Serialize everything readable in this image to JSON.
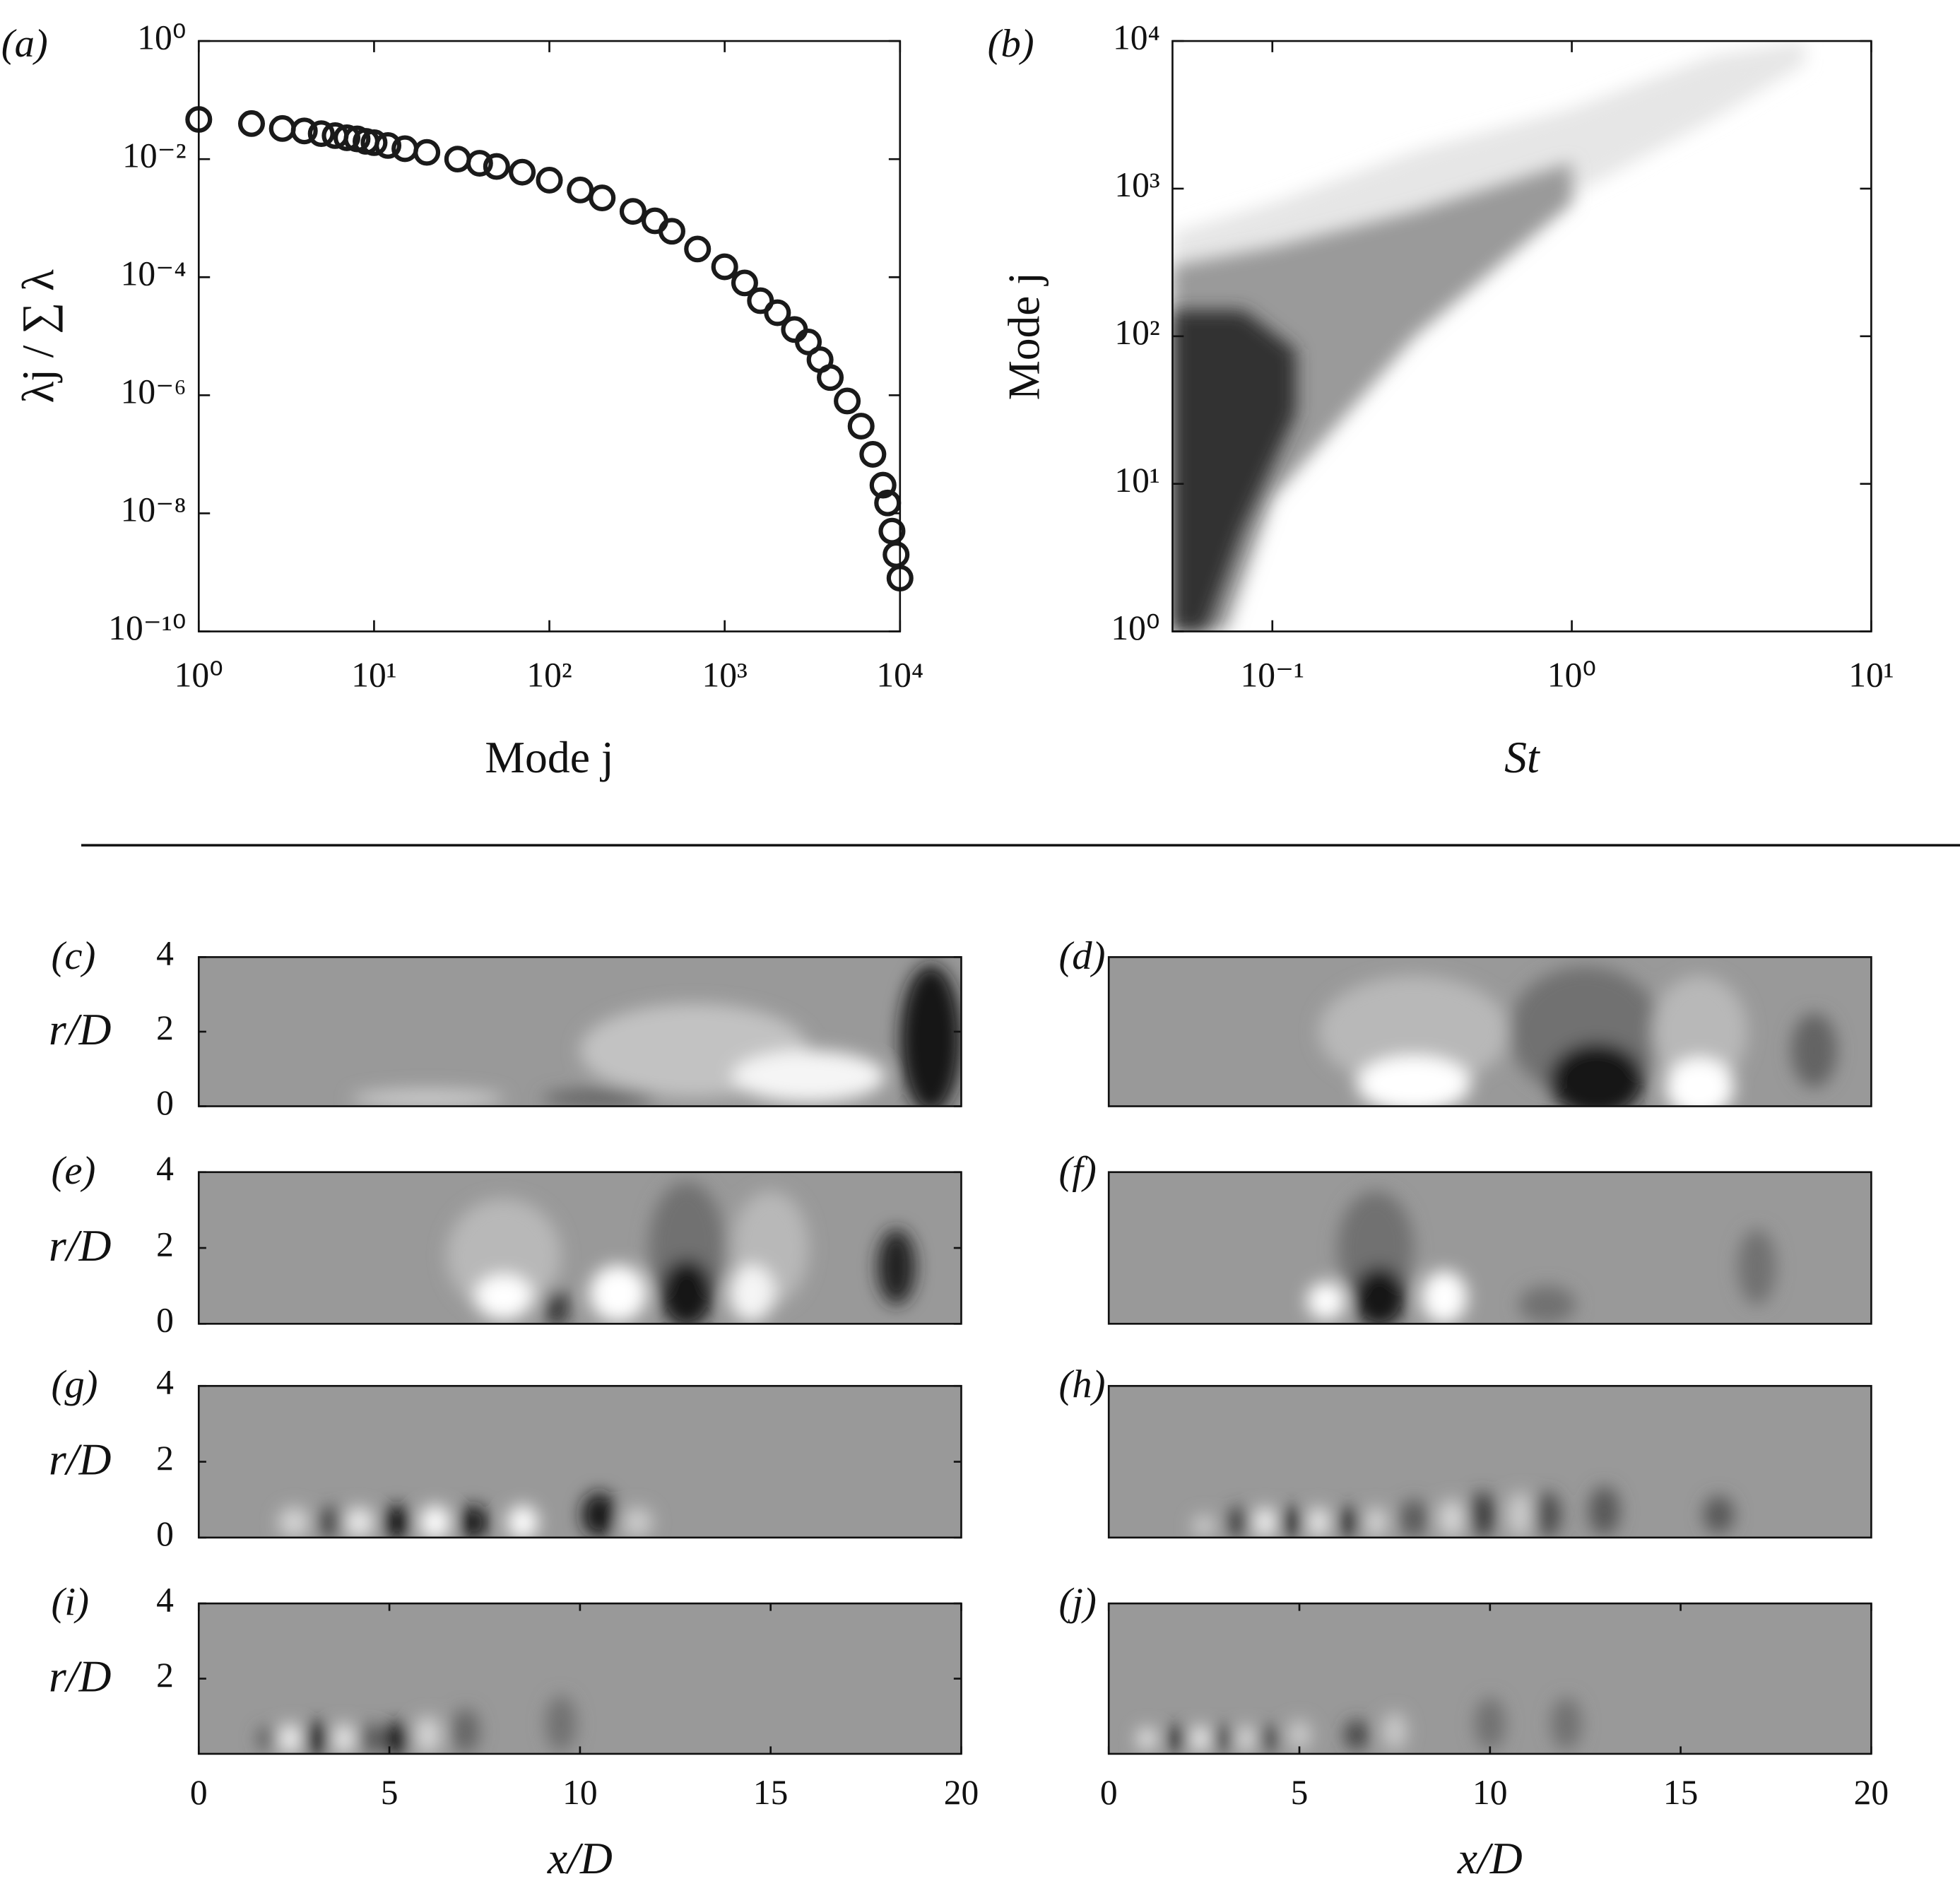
{
  "chart_data": [
    {
      "type": "scatter",
      "label": "(a)",
      "xlabel": "Mode j",
      "ylabel": "λj / ∑ λ",
      "xscale": "log",
      "yscale": "log",
      "color": "#1a1a1a",
      "x": [
        1,
        2,
        3,
        4,
        5,
        6,
        7,
        8,
        9,
        10,
        12,
        15,
        20,
        30,
        40,
        50,
        70,
        100,
        150,
        200,
        300,
        400,
        500,
        700,
        1000,
        1300,
        1600,
        2000,
        2500,
        3000,
        3500,
        4000,
        5000,
        6000,
        7000,
        8000,
        8500,
        9000,
        9500,
        10000
      ],
      "values": [
        0.047,
        0.04,
        0.033,
        0.03,
        0.027,
        0.025,
        0.023,
        0.022,
        0.02,
        0.019,
        0.017,
        0.015,
        0.013,
        0.01,
        0.0085,
        0.0075,
        0.006,
        0.0044,
        0.003,
        0.0022,
        0.0013,
        0.0009,
        0.0006,
        0.0003,
        0.00015,
        8e-05,
        4e-05,
        2.5e-05,
        1.3e-05,
        8e-06,
        4e-06,
        2e-06,
        8e-07,
        3e-07,
        1e-07,
        3e-08,
        1.5e-08,
        5e-09,
        2e-09,
        8e-10
      ],
      "xlim": [
        1,
        10000
      ],
      "ylim": [
        1e-10,
        1
      ],
      "xticks": [
        {
          "value": 1,
          "label": "10⁰"
        },
        {
          "value": 10,
          "label": "10¹"
        },
        {
          "value": 100,
          "label": "10²"
        },
        {
          "value": 1000,
          "label": "10³"
        },
        {
          "value": 10000,
          "label": "10⁴"
        }
      ],
      "yticks": [
        {
          "value": 1e-10,
          "label": "10⁻¹⁰"
        },
        {
          "value": 1e-08,
          "label": "10⁻⁸"
        },
        {
          "value": 1e-06,
          "label": "10⁻⁶"
        },
        {
          "value": 0.0001,
          "label": "10⁻⁴"
        },
        {
          "value": 0.01,
          "label": "10⁻²"
        },
        {
          "value": 1,
          "label": "10⁰"
        }
      ]
    },
    {
      "type": "region",
      "label": "(b)",
      "xlabel": "St",
      "ylabel": "Mode j",
      "xscale": "log",
      "yscale": "log",
      "regions": [
        {
          "color": "#e6e6e6",
          "x": [
            0.0464,
            0.0464,
            0.1,
            0.3,
            1,
            3,
            6,
            6,
            3,
            1,
            0.3,
            0.1,
            0.06
          ],
          "y": [
            1,
            500,
            800,
            1800,
            3500,
            8000,
            10000,
            7000,
            3000,
            900,
            200,
            10,
            1
          ]
        },
        {
          "color": "#9a9a9a",
          "x": [
            0.0464,
            0.0464,
            0.1,
            0.3,
            1,
            1,
            0.3,
            0.1,
            0.07
          ],
          "y": [
            1,
            300,
            400,
            700,
            1500,
            800,
            100,
            8,
            1
          ]
        },
        {
          "color": "#333333",
          "x": [
            0.0464,
            0.0464,
            0.08,
            0.12,
            0.12,
            0.08,
            0.06
          ],
          "y": [
            1,
            150,
            150,
            80,
            30,
            5,
            1
          ]
        }
      ],
      "xlim": [
        0.0464,
        10
      ],
      "ylim": [
        1,
        10000
      ],
      "xticks": [
        {
          "value": 0.1,
          "label": "10⁻¹"
        },
        {
          "value": 1,
          "label": "10⁰"
        },
        {
          "value": 10,
          "label": "10¹"
        }
      ],
      "yticks": [
        {
          "value": 1,
          "label": "10⁰"
        },
        {
          "value": 10,
          "label": "10¹"
        },
        {
          "value": 100,
          "label": "10²"
        },
        {
          "value": 1000,
          "label": "10³"
        },
        {
          "value": 10000,
          "label": "10⁴"
        }
      ]
    },
    {
      "type": "contour",
      "label": "(c)",
      "ylabel": "r/D",
      "xlim": [
        0,
        20
      ],
      "ylim": [
        0,
        4
      ],
      "yticks": [
        0,
        2,
        4
      ],
      "x": [
        13,
        19.2,
        16,
        10.5,
        6
      ],
      "r": [
        1.5,
        1.8,
        0.8,
        0.2,
        0.2
      ],
      "values": [
        -0.4,
        1,
        -0.9,
        0.4,
        -0.5
      ],
      "widths": [
        6,
        1.6,
        4,
        3,
        4
      ],
      "heights": [
        2.5,
        4,
        1.4,
        0.5,
        0.5
      ]
    },
    {
      "type": "contour",
      "label": "(d)",
      "xlim": [
        0,
        20
      ],
      "ylim": [
        0,
        4
      ],
      "x": [
        8,
        12.5,
        15.5,
        8,
        12.8,
        15.5,
        18.5
      ],
      "r": [
        2,
        2,
        2,
        0.6,
        0.7,
        0.5,
        1.5
      ],
      "values": [
        -0.3,
        0.3,
        -0.3,
        -1,
        1,
        -1,
        0.4
      ],
      "widths": [
        5,
        4,
        2.5,
        3,
        2.5,
        1.8,
        1.2
      ],
      "heights": [
        3,
        3.5,
        3,
        1.5,
        2,
        1.6,
        2
      ]
    },
    {
      "type": "contour",
      "label": "(e)",
      "ylabel": "r/D",
      "xlim": [
        0,
        20
      ],
      "ylim": [
        0,
        4
      ],
      "yticks": [
        0,
        2,
        4
      ],
      "x": [
        8,
        12.8,
        15,
        8,
        9.4,
        11,
        12.8,
        14.5,
        18.3
      ],
      "r": [
        1.8,
        2,
        2,
        0.7,
        0.4,
        0.8,
        0.8,
        0.8,
        1.5
      ],
      "values": [
        -0.3,
        0.3,
        -0.3,
        -1,
        0.8,
        -1,
        1,
        -0.9,
        0.9
      ],
      "widths": [
        3,
        2,
        2,
        1.5,
        0.6,
        1.5,
        1.4,
        1.2,
        1
      ],
      "heights": [
        3,
        3.5,
        3,
        1.2,
        1,
        1.5,
        1.8,
        1.5,
        2
      ]
    },
    {
      "type": "contour",
      "label": "(f)",
      "xlim": [
        0,
        20
      ],
      "ylim": [
        0,
        4
      ],
      "x": [
        7,
        5.7,
        7.1,
        8.8,
        11.5,
        17
      ],
      "r": [
        2,
        0.6,
        0.7,
        0.7,
        0.5,
        1.5
      ],
      "values": [
        0.3,
        -1,
        1,
        -1,
        0.3,
        0.3
      ],
      "widths": [
        2,
        1,
        1.4,
        1.2,
        1.5,
        1
      ],
      "heights": [
        3,
        1,
        1.6,
        1.4,
        1,
        2
      ]
    },
    {
      "type": "contour",
      "label": "(g)",
      "ylabel": "r/D",
      "xlim": [
        0,
        20
      ],
      "ylim": [
        0,
        4
      ],
      "yticks": [
        0,
        2,
        4
      ],
      "x": [
        2.5,
        3.5,
        4.2,
        5.2,
        6.2,
        7.2,
        8.5,
        10.5,
        11.5
      ],
      "r": [
        0.4,
        0.4,
        0.4,
        0.4,
        0.4,
        0.4,
        0.4,
        0.6,
        0.4
      ],
      "values": [
        -0.6,
        0.6,
        -0.8,
        1,
        -1,
        1,
        -1,
        1,
        -0.5
      ],
      "widths": [
        0.8,
        0.8,
        0.8,
        0.8,
        0.8,
        0.8,
        0.8,
        0.9,
        0.8
      ],
      "heights": [
        0.8,
        0.8,
        0.8,
        0.9,
        0.9,
        0.9,
        0.9,
        1.2,
        0.8
      ]
    },
    {
      "type": "contour",
      "label": "(h)",
      "xlim": [
        0,
        20
      ],
      "ylim": [
        0,
        4
      ],
      "x": [
        2.5,
        3.4,
        4.1,
        4.8,
        5.5,
        6.3,
        7,
        8,
        9,
        9.8,
        10.8,
        11.5,
        13,
        16
      ],
      "r": [
        0.3,
        0.4,
        0.4,
        0.4,
        0.4,
        0.4,
        0.4,
        0.5,
        0.5,
        0.6,
        0.6,
        0.6,
        0.7,
        0.6
      ],
      "values": [
        -0.5,
        0.7,
        -0.9,
        1,
        -0.8,
        0.8,
        -0.6,
        0.5,
        -0.6,
        0.7,
        -0.5,
        0.6,
        0.5,
        0.5
      ],
      "widths": [
        0.6,
        0.6,
        0.6,
        0.6,
        0.6,
        0.6,
        0.6,
        0.7,
        0.7,
        0.7,
        0.7,
        0.7,
        0.8,
        0.8
      ],
      "heights": [
        0.6,
        0.8,
        0.8,
        0.8,
        0.8,
        0.8,
        0.8,
        1,
        1,
        1.2,
        1.2,
        1.2,
        1.3,
        1
      ]
    },
    {
      "type": "contour",
      "label": "(i)",
      "ylabel": "r/D",
      "xlabel": "x/D",
      "xlim": [
        0,
        20
      ],
      "ylim": [
        0,
        4
      ],
      "xticks": [
        0,
        5,
        10,
        15,
        20
      ],
      "yticks": [
        2,
        4
      ],
      "x": [
        1.8,
        2.4,
        3.1,
        3.8,
        4.5,
        5.2,
        6,
        7,
        9.5
      ],
      "r": [
        0.4,
        0.4,
        0.4,
        0.4,
        0.4,
        0.4,
        0.5,
        0.6,
        0.8
      ],
      "values": [
        0.5,
        -0.9,
        1,
        -0.8,
        0.5,
        1,
        -0.6,
        0.4,
        0.3
      ],
      "widths": [
        0.5,
        0.6,
        0.7,
        0.6,
        0.6,
        0.7,
        0.7,
        0.7,
        0.8
      ],
      "heights": [
        0.6,
        0.8,
        0.9,
        0.8,
        0.8,
        0.9,
        1,
        1.2,
        1.5
      ]
    },
    {
      "type": "contour",
      "label": "(j)",
      "xlabel": "x/D",
      "xlim": [
        0,
        20
      ],
      "ylim": [
        0,
        4
      ],
      "xticks": [
        0,
        5,
        10,
        15,
        20
      ],
      "x": [
        1,
        1.8,
        2.4,
        3,
        3.6,
        4.2,
        5,
        6.5,
        7.5,
        10,
        12
      ],
      "r": [
        0.4,
        0.4,
        0.4,
        0.4,
        0.4,
        0.4,
        0.5,
        0.5,
        0.6,
        0.8,
        0.8
      ],
      "values": [
        -0.8,
        1,
        -0.9,
        0.8,
        -0.7,
        0.7,
        -0.5,
        0.7,
        -0.5,
        0.3,
        0.3
      ],
      "widths": [
        0.5,
        0.5,
        0.5,
        0.5,
        0.5,
        0.5,
        0.6,
        0.6,
        0.6,
        0.8,
        0.8
      ],
      "heights": [
        0.6,
        0.7,
        0.7,
        0.7,
        0.7,
        0.7,
        0.8,
        0.8,
        1,
        1.4,
        1.4
      ]
    }
  ]
}
